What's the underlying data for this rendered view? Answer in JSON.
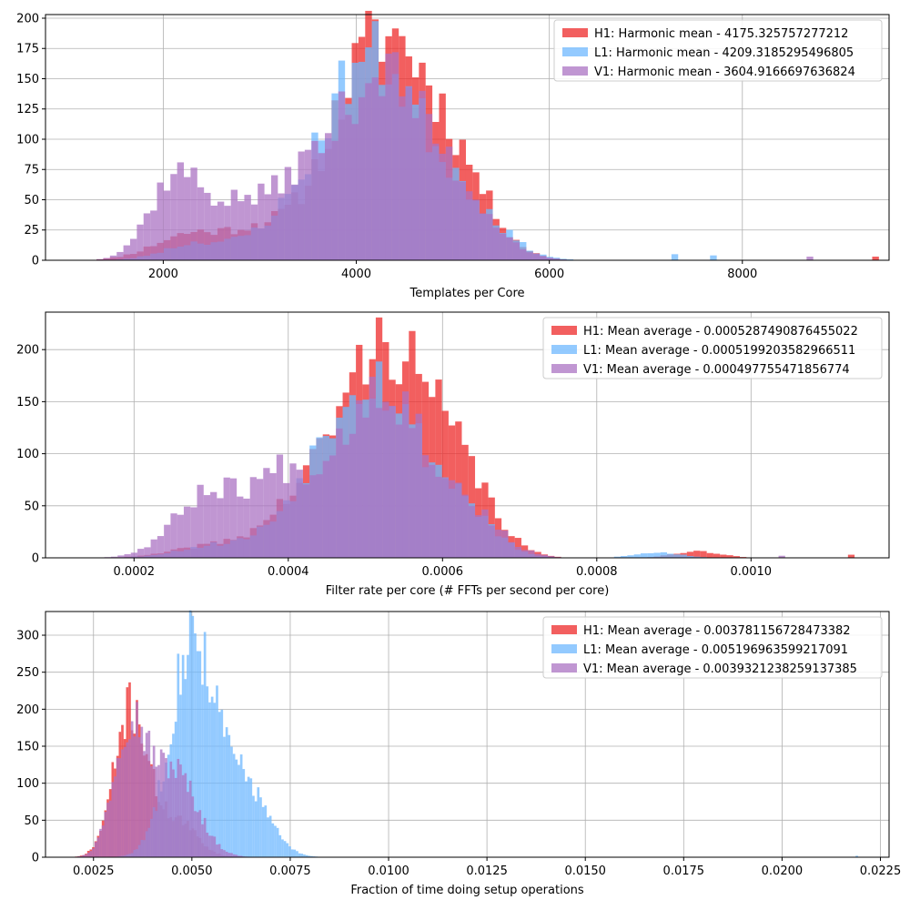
{
  "colors": {
    "H1": "#ee2a2a",
    "L1": "#6fb8ff",
    "V1": "#ab73c3"
  },
  "chart_data": [
    {
      "type": "bar",
      "subtype": "overlaid-histogram",
      "xlabel": "Templates per Core",
      "ylabel": "",
      "xlim": [
        780,
        9520
      ],
      "ylim": [
        0,
        203
      ],
      "xticks": [
        2000,
        4000,
        6000,
        8000
      ],
      "xtick_labels": [
        "2000",
        "4000",
        "6000",
        "8000"
      ],
      "yticks": [
        0,
        25,
        50,
        75,
        100,
        125,
        150,
        175,
        200
      ],
      "ytick_labels": [
        "0",
        "25",
        "50",
        "75",
        "100",
        "125",
        "150",
        "175",
        "200"
      ],
      "grid": true,
      "legend": "top-right",
      "series": [
        {
          "name": "H1: Harmonic mean  - 4175.325757277212",
          "color": "#ee2a2a",
          "peaks": [
            {
              "x": 2300,
              "h": 22,
              "w": 380
            },
            {
              "x": 3000,
              "h": 18,
              "w": 300
            },
            {
              "x": 4280,
              "h": 185,
              "w": 520
            },
            {
              "x": 5100,
              "h": 40,
              "w": 350
            }
          ],
          "bin_start": 1100,
          "bin_end": 9450,
          "bins": 120,
          "outliers": [
            {
              "x": 9380,
              "h": 3
            }
          ],
          "seed": 11
        },
        {
          "name": "L1: Harmonic mean  - 4209.3185295496805",
          "color": "#6fb8ff",
          "peaks": [
            {
              "x": 2350,
              "h": 14,
              "w": 330
            },
            {
              "x": 3100,
              "h": 12,
              "w": 300
            },
            {
              "x": 4150,
              "h": 168,
              "w": 520
            },
            {
              "x": 5150,
              "h": 35,
              "w": 380
            }
          ],
          "bin_start": 1100,
          "bin_end": 9450,
          "bins": 120,
          "outliers": [
            {
              "x": 7300,
              "h": 5
            },
            {
              "x": 7700,
              "h": 4
            }
          ],
          "seed": 23
        },
        {
          "name": "V1: Harmonic mean  - 3604.9166697636824",
          "color": "#ab73c3",
          "peaks": [
            {
              "x": 2150,
              "h": 72,
              "w": 280
            },
            {
              "x": 2800,
              "h": 40,
              "w": 260
            },
            {
              "x": 3350,
              "h": 40,
              "w": 260
            },
            {
              "x": 4250,
              "h": 155,
              "w": 500
            },
            {
              "x": 5150,
              "h": 32,
              "w": 350
            }
          ],
          "bin_start": 1100,
          "bin_end": 9450,
          "bins": 120,
          "outliers": [
            {
              "x": 8700,
              "h": 3
            }
          ],
          "seed": 37
        }
      ]
    },
    {
      "type": "bar",
      "subtype": "overlaid-histogram",
      "xlabel": "Filter rate per core (# FFTs per second per core)",
      "ylabel": "",
      "xlim": [
        8.52e-05,
        0.001179
      ],
      "ylim": [
        0,
        236
      ],
      "xticks": [
        0.0002,
        0.0004,
        0.0006,
        0.0008,
        0.001
      ],
      "xtick_labels": [
        "0.0002",
        "0.0004",
        "0.0006",
        "0.0008",
        "0.0010"
      ],
      "yticks": [
        0,
        50,
        100,
        150,
        200
      ],
      "ytick_labels": [
        "0",
        "50",
        "100",
        "150",
        "200"
      ],
      "grid": true,
      "legend": "top-right",
      "series": [
        {
          "name": "H1: Mean average - 0.0005287490876455022",
          "color": "#ee2a2a",
          "peaks": [
            {
              "x": 0.000305,
              "h": 12,
              "w": 5e-05
            },
            {
              "x": 0.0004,
              "h": 25,
              "w": 4e-05
            },
            {
              "x": 0.000525,
              "h": 205,
              "w": 6.5e-05
            },
            {
              "x": 0.00063,
              "h": 45,
              "w": 4e-05
            },
            {
              "x": 0.00093,
              "h": 6,
              "w": 3e-05
            }
          ],
          "bin_start": 0.00011,
          "bin_end": 0.00114,
          "bins": 120,
          "outliers": [
            {
              "x": 0.00113,
              "h": 3
            }
          ],
          "seed": 41
        },
        {
          "name": "L1: Mean average - 0.0005199203582966511",
          "color": "#6fb8ff",
          "peaks": [
            {
              "x": 0.00031,
              "h": 12,
              "w": 5e-05
            },
            {
              "x": 0.00041,
              "h": 18,
              "w": 4e-05
            },
            {
              "x": 0.000505,
              "h": 175,
              "w": 6e-05
            },
            {
              "x": 0.000625,
              "h": 40,
              "w": 4e-05
            },
            {
              "x": 0.00088,
              "h": 5,
              "w": 3e-05
            }
          ],
          "bin_start": 0.00011,
          "bin_end": 0.00114,
          "bins": 120,
          "outliers": [],
          "seed": 53
        },
        {
          "name": "V1: Mean average - 0.000497755471856774",
          "color": "#ab73c3",
          "peaks": [
            {
              "x": 0.0003,
              "h": 65,
              "w": 4.5e-05
            },
            {
              "x": 0.00039,
              "h": 62,
              "w": 3.5e-05
            },
            {
              "x": 0.00052,
              "h": 165,
              "w": 6e-05
            },
            {
              "x": 0.00064,
              "h": 30,
              "w": 4e-05
            }
          ],
          "bin_start": 0.00011,
          "bin_end": 0.00114,
          "bins": 120,
          "outliers": [
            {
              "x": 0.00104,
              "h": 2
            }
          ],
          "seed": 67
        }
      ]
    },
    {
      "type": "bar",
      "subtype": "overlaid-histogram",
      "xlabel": "Fraction of time doing setup operations",
      "ylabel": "",
      "xlim": [
        0.00128,
        0.02272
      ],
      "ylim": [
        0,
        332
      ],
      "xticks": [
        0.0025,
        0.005,
        0.0075,
        0.01,
        0.0125,
        0.015,
        0.0175,
        0.02,
        0.0225
      ],
      "xtick_labels": [
        "0.0025",
        "0.0050",
        "0.0075",
        "0.0100",
        "0.0125",
        "0.0150",
        "0.0175",
        "0.0200",
        "0.0225"
      ],
      "yticks": [
        0,
        50,
        100,
        150,
        200,
        250,
        300
      ],
      "ytick_labels": [
        "0",
        "50",
        "100",
        "150",
        "200",
        "250",
        "300"
      ],
      "grid": true,
      "legend": "top-right",
      "series": [
        {
          "name": "H1: Mean average - 0.003781156728473382",
          "color": "#ee2a2a",
          "peaks": [
            {
              "x": 0.00345,
              "h": 200,
              "w": 0.00042
            },
            {
              "x": 0.0046,
              "h": 50,
              "w": 0.0005
            }
          ],
          "bin_start": 0.0016,
          "bin_end": 0.009,
          "bins": 120,
          "outliers": [],
          "seed": 71
        },
        {
          "name": "L1: Mean average - 0.005196963599217091",
          "color": "#6fb8ff",
          "peaks": [
            {
              "x": 0.005,
              "h": 290,
              "w": 0.00055
            },
            {
              "x": 0.0063,
              "h": 100,
              "w": 0.0006
            }
          ],
          "bin_start": 0.0016,
          "bin_end": 0.009,
          "bins": 120,
          "outliers": [
            {
              "x": 0.0219,
              "h": 2
            }
          ],
          "seed": 83
        },
        {
          "name": "V1: Mean average - 0.0039321238259137385",
          "color": "#ab73c3",
          "peaks": [
            {
              "x": 0.0034,
              "h": 170,
              "w": 0.0004
            },
            {
              "x": 0.0045,
              "h": 120,
              "w": 0.0006
            }
          ],
          "bin_start": 0.0016,
          "bin_end": 0.009,
          "bins": 120,
          "outliers": [],
          "seed": 97
        }
      ]
    }
  ]
}
